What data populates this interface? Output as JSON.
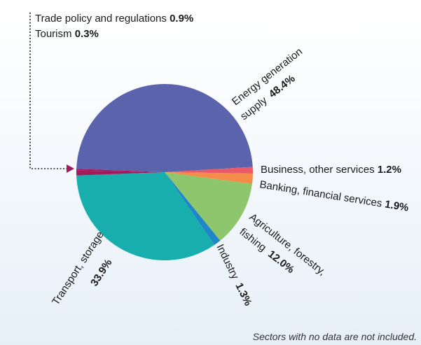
{
  "chart_data": {
    "type": "pie",
    "slices": [
      {
        "label": "Energy generation supply",
        "value_text": "48.4%",
        "value": 48.4,
        "color": "#5b63ad"
      },
      {
        "label": "Business, other services",
        "value_text": "1.2%",
        "value": 1.2,
        "color": "#e85a66"
      },
      {
        "label": "Banking, financial services",
        "value_text": "1.9%",
        "value": 1.9,
        "color": "#f48c4a"
      },
      {
        "label": "Agriculture, forestry, fishing",
        "value_text": "12.0%",
        "value": 12.0,
        "color": "#8dc66c"
      },
      {
        "label": "Industry",
        "value_text": "1.3%",
        "value": 1.3,
        "color": "#1f86c7"
      },
      {
        "label": "Transport, storage",
        "value_text": "33.9%",
        "value": 33.9,
        "color": "#18aead"
      },
      {
        "label": "Trade policy and regulations",
        "value_text": "0.9%",
        "value": 0.9,
        "color": "#a3195b"
      },
      {
        "label": "Tourism",
        "value_text": "0.3%",
        "value": 0.3,
        "color": "#a3195b"
      }
    ]
  },
  "labels": {
    "energy_line1": "Energy generation",
    "energy_line2": "supply",
    "energy_value": "48.4%",
    "business": "Business, other services",
    "business_value": "1.2%",
    "banking": "Banking, financial services",
    "banking_value": "1.9%",
    "agri_line1": "Agriculture, forestry,",
    "agri_line2": "fishing",
    "agri_value": "12.0%",
    "industry": "Industry",
    "industry_value": "1.3%",
    "transport": "Transport, storage",
    "transport_value": "33.9%",
    "trade": "Trade policy and regulations",
    "trade_value": "0.9%",
    "tourism": "Tourism",
    "tourism_value": "0.3%"
  },
  "note": "Sectors with no data are not included."
}
